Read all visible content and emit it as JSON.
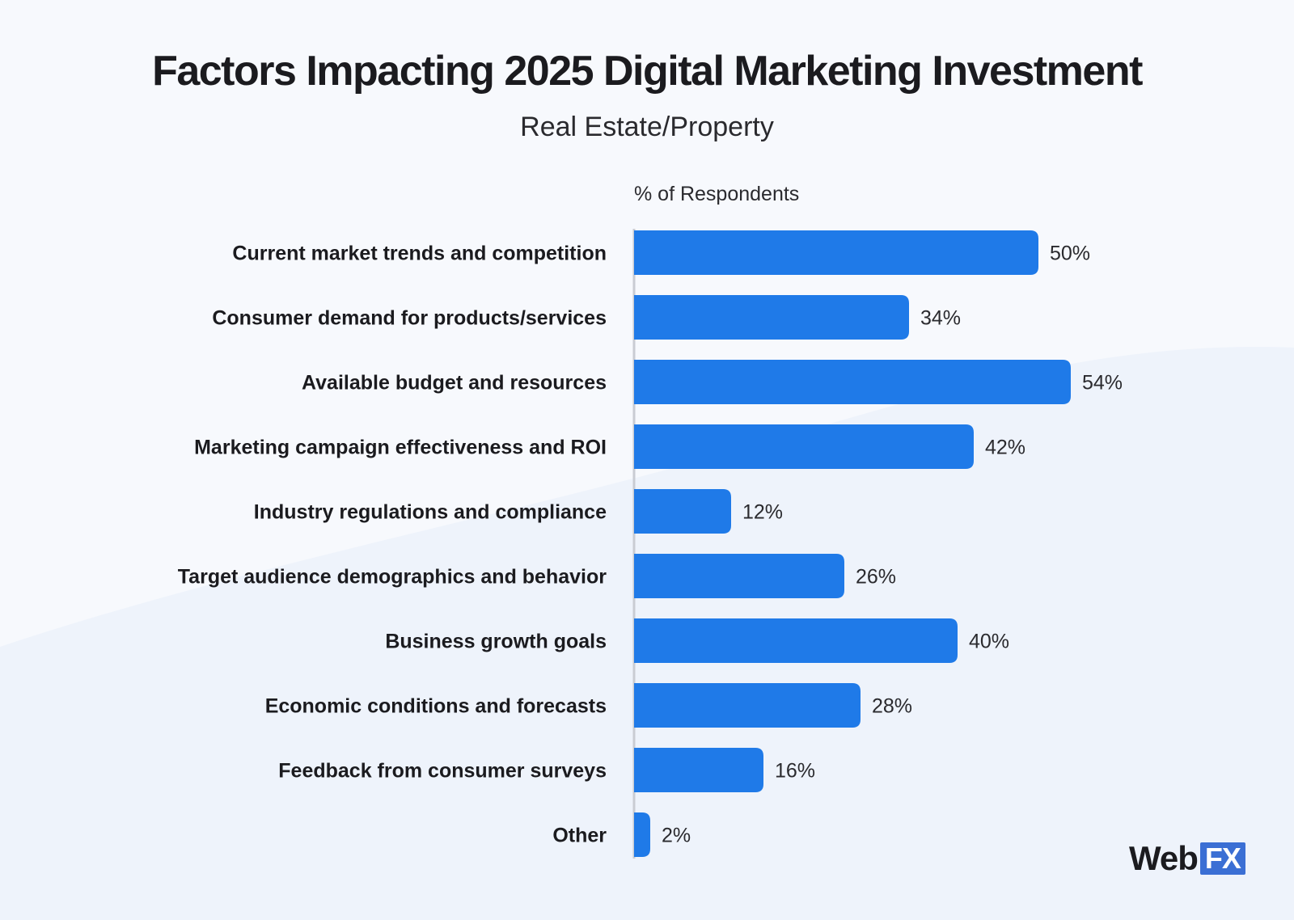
{
  "title": "Factors Impacting 2025 Digital Marketing Investment",
  "subtitle": "Real Estate/Property",
  "colors": {
    "bar": "#1f7ae8",
    "axis": "#c9ccd3",
    "label": "#1b1b1f",
    "value": "#2a2a2e"
  },
  "logo": {
    "text_web": "Web",
    "text_fx": "FX"
  },
  "chart_data": {
    "type": "bar",
    "orientation": "horizontal",
    "axis_label": "% of Respondents",
    "categories": [
      "Current market trends and competition",
      "Consumer demand for products/services",
      "Available budget and resources",
      "Marketing campaign effectiveness and ROI",
      "Industry regulations and compliance",
      "Target audience demographics and behavior",
      "Business growth goals",
      "Economic conditions and forecasts",
      "Feedback from consumer surveys",
      "Other"
    ],
    "values": [
      50,
      34,
      54,
      42,
      12,
      26,
      40,
      28,
      16,
      2
    ],
    "value_labels": [
      "50%",
      "34%",
      "54%",
      "42%",
      "12%",
      "26%",
      "40%",
      "28%",
      "16%",
      "2%"
    ],
    "unit": "%",
    "xlim": [
      0,
      54
    ],
    "grid": false,
    "legend": "none"
  }
}
